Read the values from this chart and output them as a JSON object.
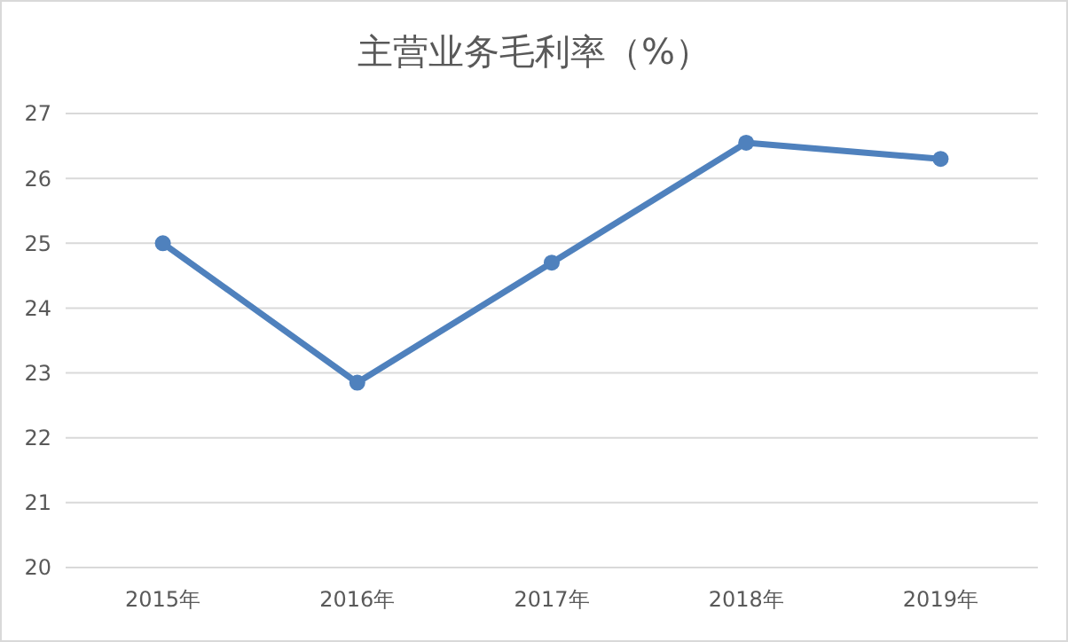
{
  "chart_data": {
    "type": "line",
    "title": "主营业务毛利率（%）",
    "categories": [
      "2015年",
      "2016年",
      "2017年",
      "2018年",
      "2019年"
    ],
    "series": [
      {
        "color": "#4f81bd",
        "values": [
          25,
          22.85,
          24.7,
          26.55,
          26.3
        ]
      }
    ],
    "ylim": [
      20,
      27
    ],
    "yticks": [
      20,
      21,
      22,
      23,
      24,
      25,
      26,
      27
    ],
    "grid": "y",
    "marker": "circle"
  }
}
